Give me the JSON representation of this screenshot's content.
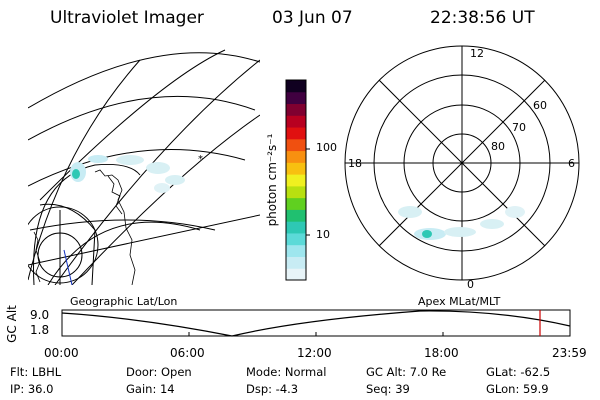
{
  "header": {
    "title": "Ultraviolet Imager",
    "date": "03 Jun 07",
    "time": "22:38:56 UT"
  },
  "colorbar": {
    "unit_label": "photon cm⁻²s⁻¹",
    "ticks": [
      "100",
      "10"
    ],
    "colors": [
      "#e8f4f8",
      "#c8ecf4",
      "#9ee6ee",
      "#5cdad8",
      "#2ec8b4",
      "#20c070",
      "#60d020",
      "#b8e010",
      "#f0f020",
      "#f8c010",
      "#f89010",
      "#f05010",
      "#e01010",
      "#b80020",
      "#800030",
      "#400040",
      "#100020"
    ]
  },
  "polar_plot": {
    "mlt_labels": [
      "12",
      "18",
      "6",
      "0"
    ],
    "lat_labels": [
      "60",
      "70",
      "80"
    ]
  },
  "left_map": {
    "label": "Geographic Lat/Lon"
  },
  "right_map": {
    "label": "Apex  MLat/MLT"
  },
  "altitude_panel": {
    "axis_label": "GC Alt",
    "y_ticks": [
      "9.0",
      "1.8"
    ],
    "x_ticks": [
      "00:00",
      "06:00",
      "12:00",
      "18:00",
      "23:59"
    ],
    "current_marker_color": "#cc0000"
  },
  "info": {
    "flt": "Flt: LBHL",
    "door": "Door: Open",
    "mode": "Mode: Normal",
    "gc_alt": "GC Alt: 7.0 Re",
    "glat": "GLat: -62.5",
    "ip": "IP: 36.0",
    "gain": "Gain: 14",
    "dsp": "Dsp:   -4.3",
    "seq": "Seq: 39",
    "glon": "GLon:  59.9"
  }
}
